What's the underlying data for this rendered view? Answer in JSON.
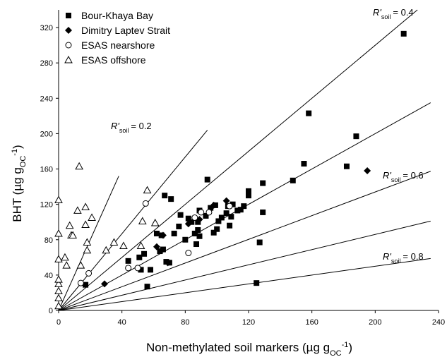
{
  "chart_data": {
    "type": "scatter",
    "xlabel": "Non-methylated soil markers (µg g",
    "xlabel_sub": "OC",
    "xlabel_sup": "-1",
    "xlabel_end": ")",
    "ylabel": "BHT (µg g",
    "ylabel_sub": "OC",
    "ylabel_sup": "-1",
    "ylabel_end": ")",
    "xlim": [
      0,
      240
    ],
    "ylim": [
      0,
      340
    ],
    "xticks": [
      "0",
      "40",
      "80",
      "120",
      "160",
      "200",
      "240"
    ],
    "yticks": [
      "0",
      "40",
      "80",
      "120",
      "160",
      "200",
      "240",
      "280",
      "320"
    ],
    "legend_position": "top-left",
    "grid": false,
    "series": [
      {
        "name": "Bour-Khaya Bay",
        "marker": "filled-square",
        "points": [
          [
            17,
            29
          ],
          [
            44,
            56
          ],
          [
            51,
            60
          ],
          [
            52,
            46
          ],
          [
            54,
            64
          ],
          [
            56,
            27
          ],
          [
            58,
            46
          ],
          [
            62,
            87
          ],
          [
            64,
            67
          ],
          [
            65,
            85
          ],
          [
            66,
            69
          ],
          [
            67,
            130
          ],
          [
            68,
            55
          ],
          [
            70,
            54
          ],
          [
            71,
            126
          ],
          [
            73,
            87
          ],
          [
            76,
            95
          ],
          [
            77,
            108
          ],
          [
            80,
            80
          ],
          [
            82,
            104
          ],
          [
            84,
            100
          ],
          [
            86,
            87
          ],
          [
            87,
            75
          ],
          [
            88,
            100
          ],
          [
            88,
            91
          ],
          [
            89,
            84
          ],
          [
            89,
            113
          ],
          [
            93,
            107
          ],
          [
            94,
            148
          ],
          [
            96,
            116
          ],
          [
            98,
            88
          ],
          [
            99,
            119
          ],
          [
            100,
            92
          ],
          [
            101,
            101
          ],
          [
            103,
            105
          ],
          [
            106,
            110
          ],
          [
            107,
            118
          ],
          [
            108,
            96
          ],
          [
            109,
            106
          ],
          [
            110,
            120
          ],
          [
            113,
            113
          ],
          [
            115,
            114
          ],
          [
            117,
            118
          ],
          [
            120,
            130
          ],
          [
            120,
            135
          ],
          [
            125,
            31
          ],
          [
            127,
            77
          ],
          [
            129,
            111
          ],
          [
            129,
            144
          ],
          [
            148,
            147
          ],
          [
            155,
            166
          ],
          [
            158,
            223
          ],
          [
            182,
            163
          ],
          [
            188,
            197
          ],
          [
            218,
            313
          ]
        ]
      },
      {
        "name": "Dimitry Laptev Strait",
        "marker": "filled-diamond",
        "points": [
          [
            29,
            30
          ],
          [
            62,
            72
          ],
          [
            66,
            85
          ],
          [
            69,
            54
          ],
          [
            82,
            98
          ],
          [
            89,
            103
          ],
          [
            98,
            119
          ],
          [
            106,
            124
          ],
          [
            195,
            158
          ]
        ]
      },
      {
        "name": "ESAS nearshore",
        "marker": "open-circle",
        "points": [
          [
            14,
            31
          ],
          [
            19,
            42
          ],
          [
            44,
            48
          ],
          [
            50,
            48
          ],
          [
            55,
            121
          ],
          [
            82,
            65
          ],
          [
            86,
            105
          ],
          [
            90,
            111
          ],
          [
            95,
            111
          ],
          [
            108,
            118
          ]
        ]
      },
      {
        "name": "ESAS offshore",
        "marker": "open-triangle",
        "points": [
          [
            0,
            5
          ],
          [
            0,
            14
          ],
          [
            0,
            22
          ],
          [
            0,
            30
          ],
          [
            0,
            35
          ],
          [
            0,
            58
          ],
          [
            0,
            87
          ],
          [
            0,
            125
          ],
          [
            4,
            60
          ],
          [
            5,
            51
          ],
          [
            7,
            96
          ],
          [
            8,
            85
          ],
          [
            9,
            85
          ],
          [
            12,
            113
          ],
          [
            13,
            163
          ],
          [
            14,
            51
          ],
          [
            17,
            117
          ],
          [
            17,
            97
          ],
          [
            18,
            77
          ],
          [
            18,
            68
          ],
          [
            21,
            105
          ],
          [
            30,
            68
          ],
          [
            35,
            77
          ],
          [
            41,
            73
          ],
          [
            52,
            73
          ],
          [
            53,
            101
          ],
          [
            56,
            136
          ],
          [
            61,
            99
          ]
        ]
      }
    ],
    "reference_lines": [
      {
        "label": "R'",
        "sub": "soil",
        "value": "= 0.2",
        "slope": 4.0
      },
      {
        "label": "",
        "sub": "",
        "value": "",
        "slope": 2.17
      },
      {
        "label": "R'",
        "sub": "soil",
        "value": "= 0.4",
        "slope": 1.5
      },
      {
        "label": "",
        "sub": "",
        "value": "",
        "slope": 1.0
      },
      {
        "label": "R'",
        "sub": "soil",
        "value": "= 0.6",
        "slope": 0.67
      },
      {
        "label": "",
        "sub": "",
        "value": "",
        "slope": 0.43
      },
      {
        "label": "R'",
        "sub": "soil",
        "value": "= 0.8",
        "slope": 0.25
      }
    ]
  }
}
